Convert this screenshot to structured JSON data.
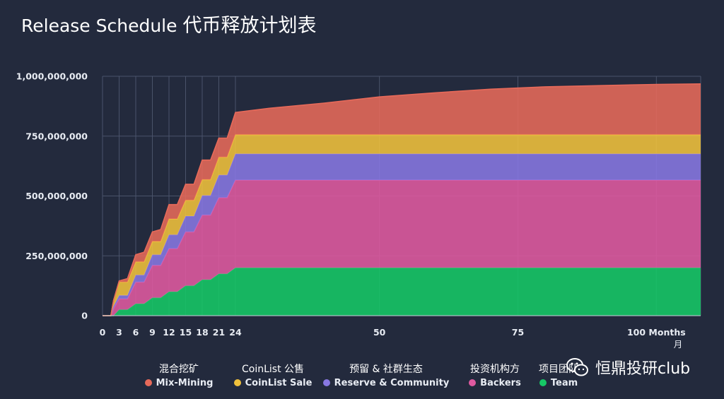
{
  "title": {
    "en": "Release Schedule",
    "zh": "代币释放计划表"
  },
  "watermark": {
    "text": "恒鼎投研club",
    "icon": "wechat-icon"
  },
  "legend": [
    {
      "cn": "混合挖矿",
      "en": "Mix-Mining",
      "color": "#e76a5a"
    },
    {
      "cn": "CoinList 公售",
      "en": "CoinList Sale",
      "color": "#f0c13c"
    },
    {
      "cn": "预留 & 社群生态",
      "en": "Reserve & Community",
      "color": "#8878e2"
    },
    {
      "cn": "投资机构方",
      "en": "Backers",
      "color": "#e05aa1"
    },
    {
      "cn": "项目团队",
      "en": "Team",
      "color": "#16c866"
    }
  ],
  "chart_data": {
    "type": "area",
    "stacked": true,
    "title": "Release Schedule 代币释放计划表",
    "xlabel": "Months 月",
    "ylabel": "",
    "xlim": [
      0,
      108
    ],
    "ylim": [
      0,
      1000000000
    ],
    "x_ticks": [
      0,
      3,
      6,
      9,
      12,
      15,
      18,
      21,
      24,
      50,
      75,
      100
    ],
    "y_ticks": [
      0,
      250000000,
      500000000,
      750000000,
      1000000000
    ],
    "y_tick_labels": [
      "0",
      "250,000,000",
      "500,000,000",
      "750,000,000",
      "1,000,000,000"
    ],
    "x_tick_labels": [
      "0",
      "3",
      "6",
      "9",
      "12",
      "15",
      "18",
      "21",
      "24",
      "50",
      "75",
      "100 Months"
    ],
    "x_unit_label": "月",
    "grid_x": [
      0,
      3,
      6,
      9,
      12,
      15,
      18,
      21,
      24,
      50,
      75,
      100
    ],
    "x": [
      0,
      1.5,
      2,
      3,
      4.5,
      6,
      7.5,
      9,
      10.5,
      12,
      13.5,
      15,
      16.5,
      18,
      19.5,
      21,
      22.5,
      24,
      30,
      40,
      50,
      60,
      70,
      80,
      90,
      100,
      108
    ],
    "series": [
      {
        "name": "Team",
        "values": [
          0,
          0,
          0,
          25000000,
          25000000,
          50000000,
          50000000,
          75000000,
          75000000,
          100000000,
          100000000,
          125000000,
          125000000,
          150000000,
          150000000,
          175000000,
          175000000,
          200000000,
          200000000,
          200000000,
          200000000,
          200000000,
          200000000,
          200000000,
          200000000,
          200000000,
          200000000
        ]
      },
      {
        "name": "Backers",
        "values": [
          0,
          0,
          30000000,
          45000000,
          45000000,
          90000000,
          90000000,
          135000000,
          135000000,
          180000000,
          180000000,
          225000000,
          225000000,
          270000000,
          270000000,
          318000000,
          318000000,
          366000000,
          366000000,
          366000000,
          366000000,
          366000000,
          366000000,
          366000000,
          366000000,
          366000000,
          366000000
        ]
      },
      {
        "name": "Reserve & Community",
        "values": [
          0,
          0,
          10000000,
          15000000,
          15000000,
          30000000,
          30000000,
          45000000,
          45000000,
          58000000,
          58000000,
          66000000,
          66000000,
          82000000,
          82000000,
          95000000,
          95000000,
          110000000,
          110000000,
          110000000,
          110000000,
          110000000,
          110000000,
          110000000,
          110000000,
          110000000,
          110000000
        ]
      },
      {
        "name": "CoinList Sale",
        "values": [
          0,
          0,
          25000000,
          55000000,
          55000000,
          55000000,
          55000000,
          55000000,
          55000000,
          66000000,
          66000000,
          66000000,
          66000000,
          66000000,
          66000000,
          74000000,
          74000000,
          80000000,
          80000000,
          80000000,
          80000000,
          80000000,
          80000000,
          80000000,
          80000000,
          80000000,
          80000000
        ]
      },
      {
        "name": "Mix-Mining",
        "values": [
          0,
          0,
          0,
          5000000,
          15000000,
          30000000,
          40000000,
          40000000,
          50000000,
          60000000,
          60000000,
          67000000,
          67000000,
          82000000,
          82000000,
          80000000,
          80000000,
          93000000,
          110000000,
          132000000,
          158000000,
          175000000,
          190000000,
          200000000,
          205000000,
          210000000,
          212000000
        ]
      }
    ]
  }
}
